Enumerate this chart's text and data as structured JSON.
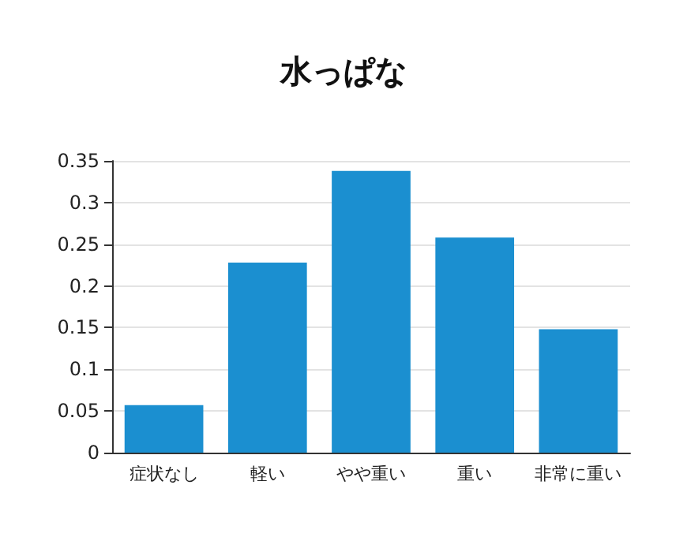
{
  "chart_data": {
    "type": "bar",
    "title": "水っぱな",
    "categories": [
      "症状なし",
      "軽い",
      "やや重い",
      "重い",
      "非常に重い"
    ],
    "values": [
      0.057,
      0.228,
      0.338,
      0.258,
      0.148
    ],
    "color": "#1b8fd0",
    "ylim": [
      0,
      0.35
    ],
    "yticks": [
      0,
      0.05,
      0.1,
      0.15,
      0.2,
      0.25,
      0.3,
      0.35
    ],
    "grid": "y"
  }
}
